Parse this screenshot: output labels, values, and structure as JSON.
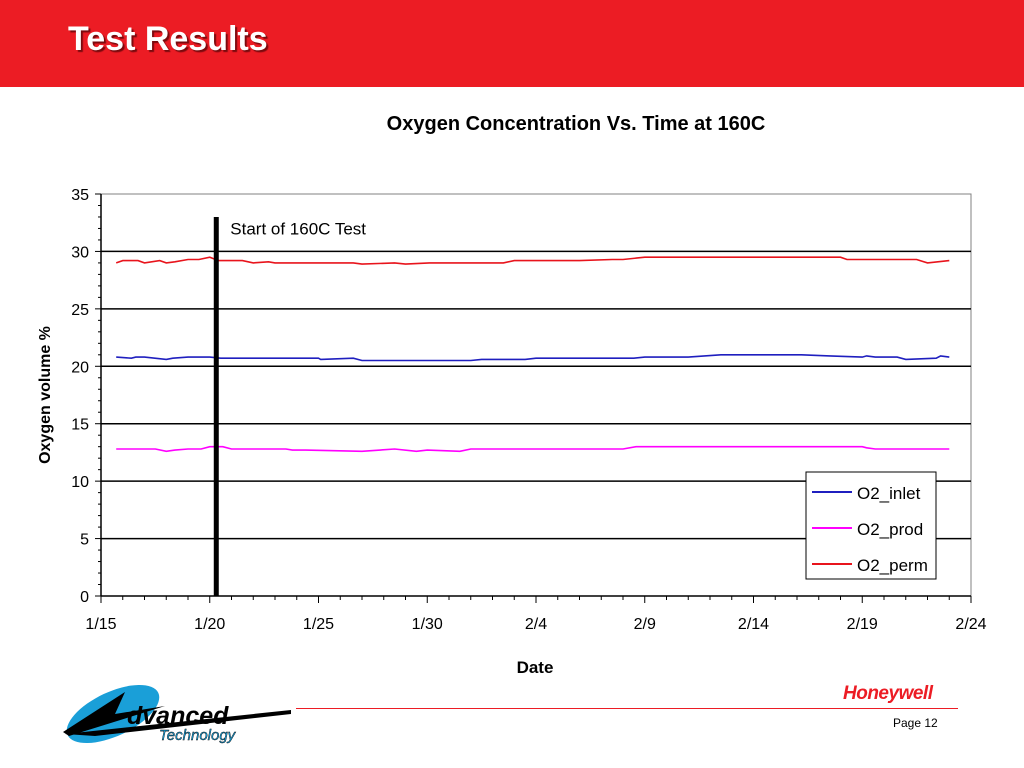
{
  "slide": {
    "title": "Test Results",
    "brand": "Honeywell",
    "page_label": "Page 12",
    "logo_text": "Advanced Technology",
    "colors": {
      "header": "#ec1c24",
      "brand": "#ec1c24",
      "logo_blue": "#1a9fd8"
    }
  },
  "chart_data": {
    "type": "line",
    "title": "Oxygen Concentration Vs. Time at 160C",
    "xlabel": "Date",
    "ylabel": "Oxygen volume %",
    "x_tick_labels": [
      "1/15",
      "1/20",
      "1/25",
      "1/30",
      "2/4",
      "2/9",
      "2/14",
      "2/19",
      "2/24"
    ],
    "x_range_days": [
      0,
      40
    ],
    "ylim": [
      0,
      35
    ],
    "y_ticks": [
      0,
      5,
      10,
      15,
      20,
      25,
      30,
      35
    ],
    "grid": "horizontal",
    "legend_position": "bottom-right",
    "annotation": {
      "text": "Start of 160C Test",
      "x_day": 5.3
    },
    "series": [
      {
        "name": "O2_inlet",
        "color": "#1f1fbf",
        "x": [
          0.7,
          1.4,
          1.6,
          2.0,
          3.0,
          3.3,
          4.0,
          5.0,
          5.5,
          10.0,
          10.1,
          11.6,
          12.0,
          17.0,
          17.5,
          19.5,
          20.0,
          24.5,
          25.0,
          27.0,
          28.5,
          32.0,
          32.2,
          33.5,
          35.0,
          35.2,
          35.6,
          36.6,
          37.0,
          38.4,
          38.6,
          39.0
        ],
        "y": [
          20.8,
          20.7,
          20.8,
          20.8,
          20.6,
          20.7,
          20.8,
          20.8,
          20.7,
          20.7,
          20.6,
          20.7,
          20.5,
          20.5,
          20.6,
          20.6,
          20.7,
          20.7,
          20.8,
          20.8,
          21.0,
          21.0,
          21.0,
          20.9,
          20.8,
          20.9,
          20.8,
          20.8,
          20.6,
          20.7,
          20.9,
          20.8
        ]
      },
      {
        "name": "O2_prod",
        "color": "#ff00ff",
        "x": [
          0.7,
          2.5,
          3.0,
          3.4,
          4.0,
          4.6,
          5.0,
          5.6,
          6.0,
          8.5,
          8.8,
          9.4,
          12.0,
          13.5,
          14.5,
          15.0,
          16.5,
          17.0,
          20.0,
          24.0,
          24.6,
          28.5,
          35.0,
          35.2,
          35.6,
          37.0,
          39.0
        ],
        "y": [
          12.8,
          12.8,
          12.6,
          12.7,
          12.8,
          12.8,
          13.0,
          13.0,
          12.8,
          12.8,
          12.7,
          12.7,
          12.6,
          12.8,
          12.6,
          12.7,
          12.6,
          12.8,
          12.8,
          12.8,
          13.0,
          13.0,
          13.0,
          12.9,
          12.8,
          12.8,
          12.8
        ]
      },
      {
        "name": "O2_perm",
        "color": "#e8141c",
        "x": [
          0.7,
          1.0,
          1.7,
          2.0,
          2.7,
          3.0,
          3.4,
          4.0,
          4.5,
          5.0,
          5.4,
          6.5,
          7.0,
          7.7,
          8.0,
          9.5,
          10.0,
          11.6,
          12.0,
          13.5,
          14.0,
          15.1,
          16.0,
          18.5,
          19.0,
          22.0,
          23.5,
          24.0,
          25.0,
          30.0,
          31.0,
          34.0,
          34.3,
          34.6,
          37.5,
          38.0,
          39.0
        ],
        "y": [
          29.0,
          29.2,
          29.2,
          29.0,
          29.2,
          29.0,
          29.1,
          29.3,
          29.3,
          29.5,
          29.2,
          29.2,
          29.0,
          29.1,
          29.0,
          29.0,
          29.0,
          29.0,
          28.9,
          29.0,
          28.9,
          29.0,
          29.0,
          29.0,
          29.2,
          29.2,
          29.3,
          29.3,
          29.5,
          29.5,
          29.5,
          29.5,
          29.3,
          29.3,
          29.3,
          29.0,
          29.2
        ]
      }
    ]
  }
}
